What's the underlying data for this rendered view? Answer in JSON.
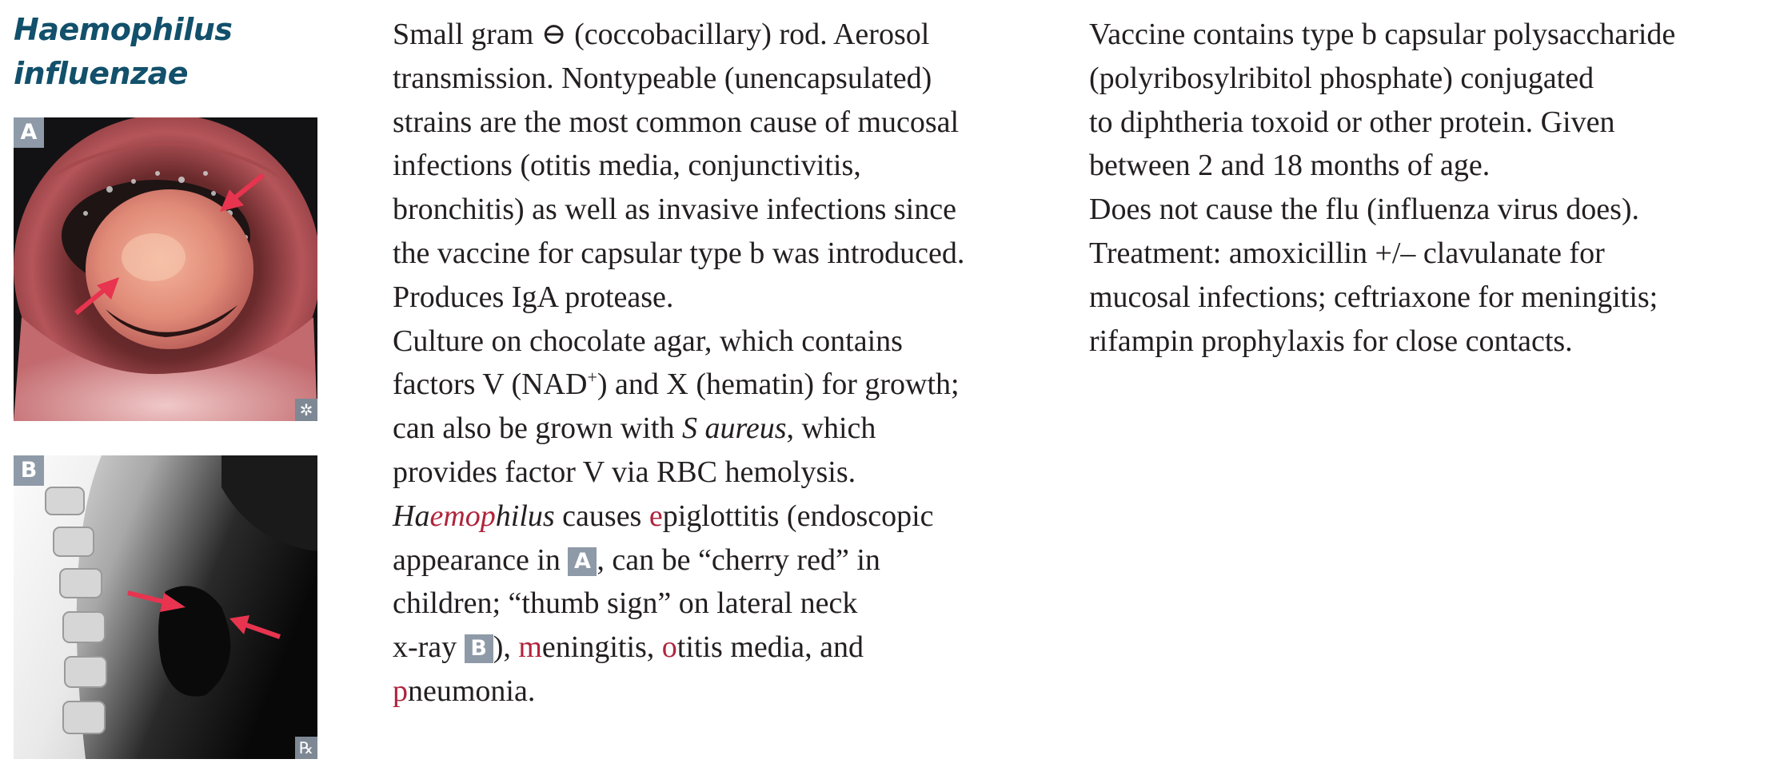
{
  "title": {
    "line1": "Haemophilus",
    "line2": "influenzae"
  },
  "figures": {
    "a": {
      "letter": "A",
      "corner": "✲"
    },
    "b": {
      "letter": "B",
      "corner": "℞"
    }
  },
  "left_column": {
    "p1": {
      "l1": "Small gram ⊖ (coccobacillary) rod. Aerosol",
      "l2": "transmission. Nontypeable (unencapsulated)",
      "l3": "strains are the most common cause of mucosal",
      "l4": "infections (otitis media, conjunctivitis,",
      "l5": "bronchitis) as well as invasive infections since",
      "l6": "the vaccine for capsular type b was introduced.",
      "l7": "Produces IgA protease."
    },
    "p2": {
      "l1": "Culture on chocolate agar, which contains",
      "l2a": "factors V (NAD",
      "l2sup": "+",
      "l2b": ") and X (hematin) for growth;",
      "l3a": "can also be grown with ",
      "l3i": "S aureus",
      "l3b": ", which",
      "l4": "provides factor V via RBC hemolysis."
    },
    "p3": {
      "l1_ha": "Ha",
      "l1_emo": "emo",
      "l1_p": "p",
      "l1_hilus": "hilus",
      "l1_causes": " causes ",
      "l1_e": "e",
      "l1_rest": "piglottitis (endoscopic",
      "l2a": "appearance in ",
      "l2box": "A",
      "l2b": ", can be “cherry red” in",
      "l3": "children; “thumb sign” on lateral neck",
      "l4a": "x-ray ",
      "l4box": "B",
      "l4b": "), ",
      "l4m": "m",
      "l4c": "eningitis, ",
      "l4o": "o",
      "l4d": "titis media, and",
      "l5p": "p",
      "l5rest": "neumonia."
    }
  },
  "right_column": {
    "p1": {
      "l1": "Vaccine contains type b capsular polysaccharide",
      "l2": "(polyribosylribitol phosphate) conjugated",
      "l3": "to diphtheria toxoid or other protein. Given",
      "l4": "between 2 and 18 months of age."
    },
    "p2": {
      "l1": "Does not cause the flu (influenza virus does)."
    },
    "p3": {
      "l1": "Treatment: amoxicillin +/– clavulanate for",
      "l2": "mucosal infections; ceftriaxone for meningitis;",
      "l3": "rifampin prophylaxis for close contacts."
    }
  },
  "colors": {
    "title": "#12506b",
    "accent_red": "#b0243c",
    "label_box": "#8e9aa8",
    "arrow": "#e8344f"
  }
}
